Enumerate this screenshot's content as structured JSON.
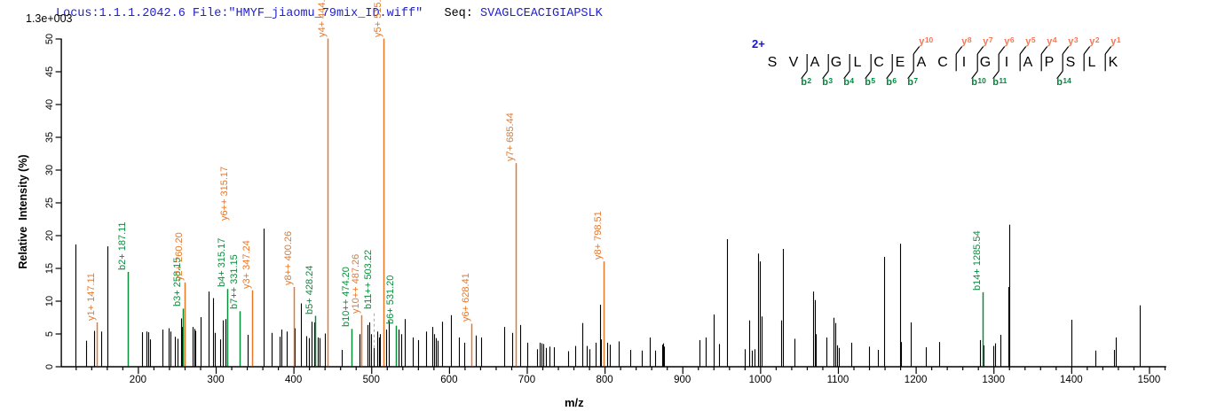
{
  "header": {
    "locus_file_label": "Locus:1.1.1.2042.6 File:\"HMYF_jiaomu_79mix_ID.wiff\"",
    "separator": "   ",
    "seq_prefix": "Seq: ",
    "sequence_text": "SVAGLCEACIGIAPSLK",
    "max_intensity": "1.3e+003"
  },
  "colors": {
    "title_blue": "#2121ce",
    "black": "#000000",
    "y_ion": "#e87728",
    "b_ion": "#0b8c3c",
    "panel_y_label": "#fa7452",
    "panel_b_label": "#008a3c",
    "charge_blue": "#1515e0",
    "dashed_gray": "#aaaaaa"
  },
  "axes": {
    "x_label": "m/z",
    "y_label": "Relative  Intensity (%)",
    "x_major_ticks": [
      200,
      300,
      400,
      500,
      600,
      700,
      800,
      900,
      1000,
      1100,
      1200,
      1300,
      1400,
      1500
    ],
    "x_minor_step": 20,
    "x_min": 101,
    "x_max": 1522,
    "y_ticks": [
      0,
      5,
      10,
      15,
      20,
      25,
      30,
      35,
      40,
      45,
      50
    ],
    "y_min": 0,
    "y_max": 50
  },
  "sequence_panel": {
    "charge": "2+",
    "residues": [
      "S",
      "V",
      "A",
      "G",
      "L",
      "C",
      "E",
      "A",
      "C",
      "I",
      "G",
      "I",
      "A",
      "P",
      "S",
      "L",
      "K"
    ],
    "y_ions": [
      {
        "gap": 7,
        "n": "10"
      },
      {
        "gap": 9,
        "n": "8"
      },
      {
        "gap": 10,
        "n": "7"
      },
      {
        "gap": 11,
        "n": "6"
      },
      {
        "gap": 12,
        "n": "5"
      },
      {
        "gap": 13,
        "n": "4"
      },
      {
        "gap": 14,
        "n": "3"
      },
      {
        "gap": 15,
        "n": "2"
      },
      {
        "gap": 16,
        "n": "1"
      }
    ],
    "b_ions": [
      {
        "gap": 2,
        "n": "2"
      },
      {
        "gap": 3,
        "n": "3"
      },
      {
        "gap": 4,
        "n": "4"
      },
      {
        "gap": 5,
        "n": "5"
      },
      {
        "gap": 6,
        "n": "6"
      },
      {
        "gap": 7,
        "n": "7"
      },
      {
        "gap": 10,
        "n": "10"
      },
      {
        "gap": 11,
        "n": "11"
      },
      {
        "gap": 14,
        "n": "14"
      }
    ]
  },
  "chart_data": {
    "type": "bar",
    "title": "MS/MS spectrum",
    "xlabel": "m/z",
    "ylabel": "Relative  Intensity (%)",
    "xlim": [
      101,
      1522
    ],
    "ylim": [
      0,
      50
    ],
    "peaks": [
      [
        120.0,
        18.6
      ],
      [
        133.4,
        3.9
      ],
      [
        143.3,
        5.4
      ],
      [
        152.5,
        5.3
      ],
      [
        160.6,
        18.3
      ],
      [
        205.3,
        5.2
      ],
      [
        211.2,
        5.3
      ],
      [
        212.8,
        5.2
      ],
      [
        216.0,
        4.1
      ],
      [
        232.0,
        5.6
      ],
      [
        240.0,
        5.8
      ],
      [
        241.8,
        5.3
      ],
      [
        248.0,
        4.5
      ],
      [
        250.5,
        4.2
      ],
      [
        255.0,
        7.3
      ],
      [
        257.0,
        6.0
      ],
      [
        270.5,
        6.0
      ],
      [
        272.5,
        5.7
      ],
      [
        274.0,
        5.4
      ],
      [
        280.6,
        7.5
      ],
      [
        290.8,
        11.4
      ],
      [
        297.0,
        10.4
      ],
      [
        298.5,
        5.1
      ],
      [
        305.8,
        4.1
      ],
      [
        309.6,
        7.0
      ],
      [
        313.1,
        7.2
      ],
      [
        340.5,
        4.8
      ],
      [
        361.8,
        21.0
      ],
      [
        371.5,
        5.1
      ],
      [
        382.0,
        4.5
      ],
      [
        385.0,
        5.6
      ],
      [
        391.5,
        5.3
      ],
      [
        402.0,
        5.8
      ],
      [
        409.4,
        9.6
      ],
      [
        415.9,
        4.6
      ],
      [
        419.7,
        4.3
      ],
      [
        423.3,
        6.8
      ],
      [
        426.6,
        6.7
      ],
      [
        431.5,
        4.4
      ],
      [
        433.5,
        4.3
      ],
      [
        439.8,
        5.0
      ],
      [
        462.0,
        2.5
      ],
      [
        485.0,
        4.9
      ],
      [
        495.0,
        6.3
      ],
      [
        497.5,
        6.7
      ],
      [
        500.0,
        4.9
      ],
      [
        507.5,
        5.3
      ],
      [
        509.5,
        4.4
      ],
      [
        511.5,
        4.9
      ],
      [
        519.5,
        5.6
      ],
      [
        522.0,
        6.9
      ],
      [
        535.5,
        5.6
      ],
      [
        538.5,
        4.9
      ],
      [
        543.0,
        7.2
      ],
      [
        553.0,
        4.4
      ],
      [
        560.5,
        4.0
      ],
      [
        570.2,
        5.3
      ],
      [
        578.0,
        6.0
      ],
      [
        580.4,
        4.9
      ],
      [
        583.4,
        4.3
      ],
      [
        585.8,
        3.9
      ],
      [
        591.1,
        6.8
      ],
      [
        602.2,
        7.8
      ],
      [
        613.2,
        4.4
      ],
      [
        619.4,
        3.6
      ],
      [
        634.4,
        4.7
      ],
      [
        641.5,
        4.4
      ],
      [
        670.5,
        6.0
      ],
      [
        680.8,
        5.1
      ],
      [
        691.4,
        6.3
      ],
      [
        700.7,
        3.6
      ],
      [
        712.9,
        2.6
      ],
      [
        717.0,
        3.6
      ],
      [
        718.8,
        3.5
      ],
      [
        720.8,
        3.4
      ],
      [
        724.4,
        2.8
      ],
      [
        728.9,
        3.0
      ],
      [
        734.8,
        2.9
      ],
      [
        752.7,
        2.3
      ],
      [
        762.1,
        3.1
      ],
      [
        770.8,
        6.6
      ],
      [
        777.3,
        3.1
      ],
      [
        780.7,
        2.6
      ],
      [
        788.5,
        3.6
      ],
      [
        793.7,
        9.4
      ],
      [
        794.9,
        4.1
      ],
      [
        803.3,
        3.6
      ],
      [
        806.4,
        3.3
      ],
      [
        818.6,
        3.8
      ],
      [
        833.5,
        2.5
      ],
      [
        847.9,
        2.4
      ],
      [
        857.6,
        4.4
      ],
      [
        864.9,
        2.4
      ],
      [
        873.5,
        3.3
      ],
      [
        874.8,
        3.5
      ],
      [
        876.0,
        3.0
      ],
      [
        922.5,
        4.0
      ],
      [
        929.5,
        4.4
      ],
      [
        940.0,
        7.9
      ],
      [
        947.2,
        3.4
      ],
      [
        957.5,
        19.4
      ],
      [
        980.4,
        2.6
      ],
      [
        986.0,
        7.0
      ],
      [
        989.0,
        2.4
      ],
      [
        993.3,
        2.6
      ],
      [
        997.3,
        17.2
      ],
      [
        999.2,
        16.0
      ],
      [
        1001.5,
        7.6
      ],
      [
        1027.5,
        7.0
      ],
      [
        1028.9,
        17.9
      ],
      [
        1044.4,
        4.2
      ],
      [
        1068.1,
        11.4
      ],
      [
        1069.8,
        10.1
      ],
      [
        1071.0,
        4.9
      ],
      [
        1084.9,
        4.4
      ],
      [
        1094.2,
        7.4
      ],
      [
        1096.3,
        6.6
      ],
      [
        1098.4,
        3.2
      ],
      [
        1100.7,
        2.8
      ],
      [
        1117.2,
        3.6
      ],
      [
        1139.6,
        3.0
      ],
      [
        1151.1,
        2.5
      ],
      [
        1158.8,
        16.7
      ],
      [
        1179.5,
        18.7
      ],
      [
        1181.3,
        3.7
      ],
      [
        1193.2,
        6.7
      ],
      [
        1213.4,
        2.9
      ],
      [
        1230.3,
        3.7
      ],
      [
        1283.0,
        4.0
      ],
      [
        1287.0,
        3.2
      ],
      [
        1300.1,
        3.1
      ],
      [
        1302.2,
        3.5
      ],
      [
        1309.0,
        4.8
      ],
      [
        1318.6,
        12.1
      ],
      [
        1320.0,
        21.6
      ],
      [
        1400.1,
        7.1
      ],
      [
        1431.2,
        2.4
      ],
      [
        1455.5,
        2.5
      ],
      [
        1457.0,
        4.4
      ],
      [
        1488.5,
        9.3
      ]
    ],
    "annotations": [
      {
        "mz": 147.11,
        "intensity": 6.7,
        "label": "y1+ 147.11",
        "series": "y"
      },
      {
        "mz": 187.11,
        "intensity": 14.4,
        "label": "b2+ 187.11",
        "series": "b"
      },
      {
        "mz": 258.15,
        "intensity": 8.8,
        "label": "b3+ 258.15",
        "series": "b"
      },
      {
        "mz": 260.2,
        "intensity": 12.8,
        "label": "y2+ 260.20",
        "series": "y"
      },
      {
        "mz": 315.17,
        "intensity": 11.8,
        "label": "b4+ 315.17",
        "series": "b"
      },
      {
        "mz": 315.17,
        "intensity": 11.8,
        "label": "y6++ 315.17",
        "series": "y",
        "label_dx": 3.5,
        "label_rise": 75,
        "no_line": true
      },
      {
        "mz": 331.15,
        "intensity": 8.4,
        "label": "b7++ 331.15",
        "series": "b"
      },
      {
        "mz": 347.24,
        "intensity": 11.6,
        "label": "y3+ 347.24",
        "series": "y"
      },
      {
        "mz": 400.26,
        "intensity": 12.1,
        "label": "y8++ 400.26",
        "series": "y"
      },
      {
        "mz": 428.24,
        "intensity": 7.7,
        "label": "b5+ 428.24",
        "series": "b"
      },
      {
        "mz": 444.28,
        "intensity": 50,
        "label": "y4+ 444.28",
        "series": "y"
      },
      {
        "mz": 474.2,
        "intensity": 5.7,
        "label": "b10++ 474.20",
        "series": "b"
      },
      {
        "mz": 487.26,
        "intensity": 7.8,
        "label": "y10++ 487.26",
        "series": "y"
      },
      {
        "mz": 503.22,
        "intensity": 2.8,
        "label": "b11++ 503.22",
        "series": "b",
        "dashed": true,
        "label_height": 8.4
      },
      {
        "mz": 515.32,
        "intensity": 50,
        "label": "y5+ 515.32",
        "series": "y"
      },
      {
        "mz": 531.2,
        "intensity": 6.2,
        "label": "b6+ 531.20",
        "series": "b"
      },
      {
        "mz": 628.41,
        "intensity": 6.5,
        "label": "y6+ 628.41",
        "series": "y"
      },
      {
        "mz": 685.44,
        "intensity": 31.0,
        "label": "y7+ 685.44",
        "series": "y"
      },
      {
        "mz": 798.51,
        "intensity": 16.0,
        "label": "y8+ 798.51",
        "series": "y"
      },
      {
        "mz": 1285.54,
        "intensity": 11.3,
        "label": "b14+ 1285.54",
        "series": "b"
      }
    ]
  }
}
